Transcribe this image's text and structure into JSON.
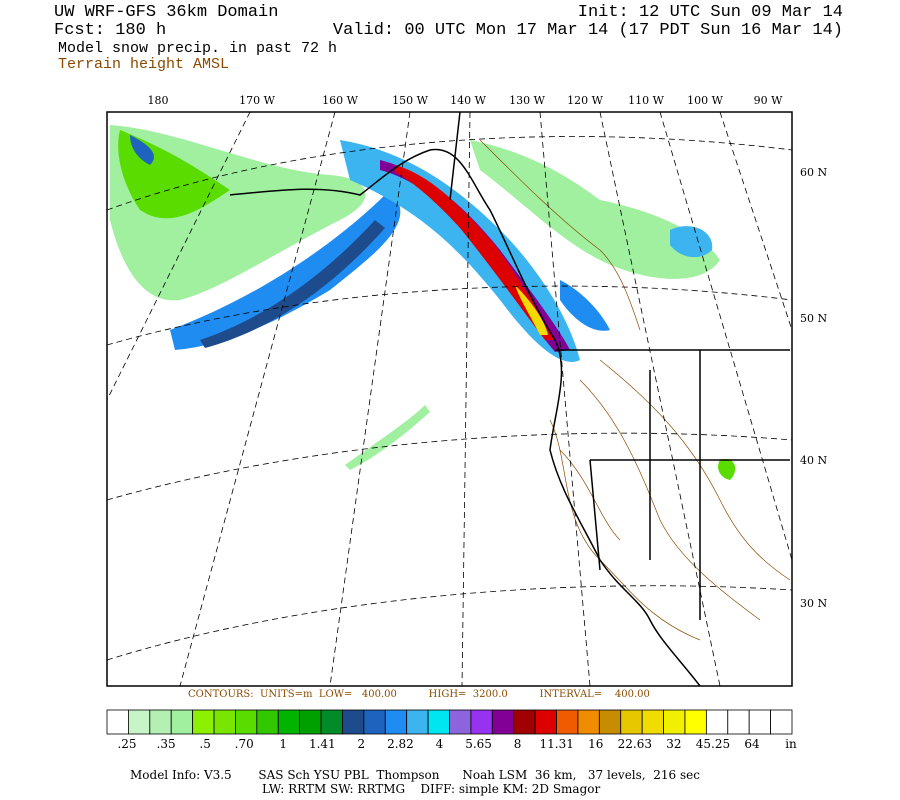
{
  "header": {
    "title": "UW WRF-GFS 36km Domain",
    "init": "Init: 12 UTC Sun 09 Mar 14",
    "fcst": "Fcst:  180 h",
    "valid": "Valid: 00 UTC Mon 17 Mar 14 (17 PDT Sun 16 Mar 14)",
    "field": "Model snow precip. in past 72 h",
    "terrain": "Terrain height AMSL"
  },
  "map": {
    "lon_labels": [
      "180",
      "170 W",
      "160 W",
      "150 W",
      "140 W",
      "130 W",
      "120 W",
      "110 W",
      "100 W",
      "90 W"
    ],
    "lat_labels": [
      "60 N",
      "50 N",
      "40 N",
      "30 N"
    ]
  },
  "contours": "CONTOURS:  UNITS=m  LOW=   400.00          HIGH=  3200.0          INTERVAL=    400.00",
  "colorbar": {
    "colors": [
      "#ffffff",
      "#c8f5c8",
      "#b4f0b4",
      "#a0f0a0",
      "#8cf000",
      "#78e600",
      "#5adc00",
      "#32c800",
      "#00b400",
      "#00a000",
      "#008c28",
      "#1e4b8c",
      "#1e64be",
      "#1e8cf0",
      "#3cb4f0",
      "#00e6f0",
      "#8c64dc",
      "#9632f0",
      "#820096",
      "#a00000",
      "#dc0000",
      "#f05a00",
      "#f08c00",
      "#c88c00",
      "#e6c800",
      "#f0dc00",
      "#f0f000",
      "#ffff00",
      "#ffffff",
      "#ffffff",
      "#ffffff",
      "#ffffff"
    ],
    "labels": [
      ".25",
      ".35",
      ".5",
      ".70",
      "1",
      "1.41",
      "2",
      "2.82",
      "4",
      "5.65",
      "8",
      "11.31",
      "16",
      "22.63",
      "32",
      "45.25",
      "64"
    ],
    "unit": "in"
  },
  "footer": {
    "line1": "Model Info: V3.5       SAS Sch YSU PBL  Thompson      Noah LSM  36 km,   37 levels,  216 sec",
    "line2": "LW: RRTM SW: RRTMG    DIFF: simple KM: 2D Smagor"
  }
}
